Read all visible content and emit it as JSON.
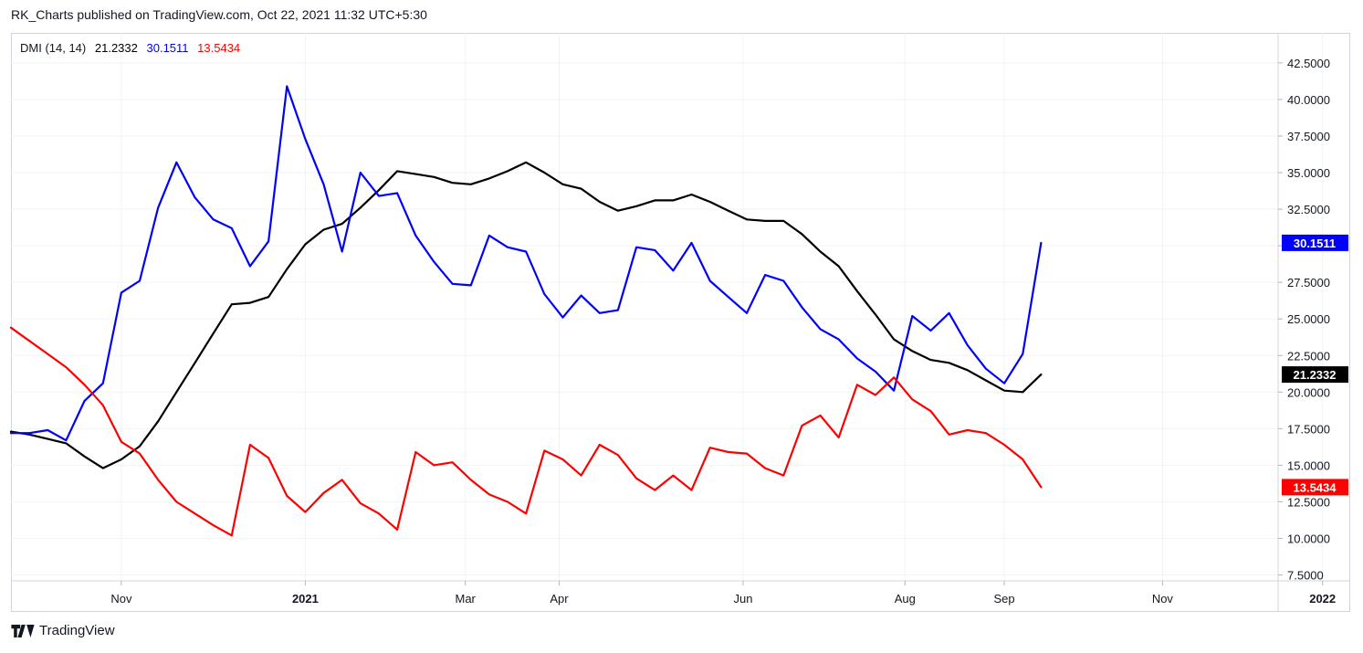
{
  "header": {
    "published_text": "RK_Charts published on TradingView.com, Oct 22, 2021 11:32 UTC+5:30"
  },
  "legend": {
    "name": "DMI (14, 14)",
    "adx": "21.2332",
    "plus_di": "30.1511",
    "minus_di": "13.5434"
  },
  "footer": {
    "brand": "TradingView"
  },
  "colors": {
    "adx": "#000000",
    "plus_di": "#0000ff",
    "minus_di": "#ff0000",
    "grid": "#f0f3fa",
    "axis_text": "#131722"
  },
  "chart_data": {
    "type": "line",
    "title": "",
    "xlabel": "",
    "ylabel": "",
    "ylim": [
      7.5,
      43.5
    ],
    "y_ticks": [
      "42.5000",
      "40.0000",
      "37.5000",
      "35.0000",
      "32.5000",
      "30.0000",
      "27.5000",
      "25.0000",
      "22.5000",
      "20.0000",
      "17.5000",
      "15.0000",
      "12.5000",
      "10.0000",
      "7.5000"
    ],
    "x_ticks": [
      {
        "label": "Nov",
        "week": 6
      },
      {
        "label": "2021",
        "week": 16
      },
      {
        "label": "Mar",
        "week": 24.7
      },
      {
        "label": "Apr",
        "week": 29.8
      },
      {
        "label": "Jun",
        "week": 39.8
      },
      {
        "label": "Aug",
        "week": 48.6
      },
      {
        "label": "Sep",
        "week": 54
      },
      {
        "label": "Nov",
        "week": 62.6
      },
      {
        "label": "2022",
        "week": 71.3
      }
    ],
    "x_range": [
      0,
      74
    ],
    "series": [
      {
        "key": "adx",
        "values": [
          17.3,
          17.1,
          16.8,
          16.5,
          15.6,
          14.8,
          15.4,
          16.3,
          18.0,
          20.0,
          22.0,
          24.0,
          26.0,
          26.1,
          26.5,
          28.4,
          30.1,
          31.1,
          31.5,
          32.6,
          33.8,
          35.1,
          34.9,
          34.7,
          34.3,
          34.2,
          34.6,
          35.1,
          35.7,
          35.0,
          34.2,
          33.9,
          33.0,
          32.4,
          32.7,
          33.1,
          33.1,
          33.5,
          33.0,
          32.4,
          31.8,
          31.7,
          31.7,
          30.8,
          29.6,
          28.6,
          26.9,
          25.3,
          23.6,
          22.8,
          22.2,
          22.0,
          21.5,
          20.8,
          20.1,
          20.0,
          21.2
        ]
      },
      {
        "key": "plus_di",
        "values": [
          17.2,
          17.2,
          17.4,
          16.7,
          19.4,
          20.6,
          26.8,
          27.6,
          32.6,
          35.7,
          33.3,
          31.8,
          31.2,
          28.6,
          30.3,
          40.9,
          37.3,
          34.2,
          29.6,
          35.0,
          33.4,
          33.6,
          30.7,
          28.9,
          27.4,
          27.3,
          30.7,
          29.9,
          29.6,
          26.7,
          25.1,
          26.6,
          25.4,
          25.6,
          29.9,
          29.7,
          28.3,
          30.2,
          27.6,
          26.5,
          25.4,
          28.0,
          27.6,
          25.8,
          24.3,
          23.6,
          22.3,
          21.4,
          20.1,
          25.2,
          24.2,
          25.4,
          23.2,
          21.6,
          20.6,
          22.6,
          30.2
        ]
      },
      {
        "key": "minus_di",
        "values": [
          24.4,
          23.5,
          22.6,
          21.7,
          20.5,
          19.1,
          16.6,
          15.8,
          14.0,
          12.5,
          11.7,
          10.9,
          10.2,
          16.4,
          15.5,
          12.9,
          11.8,
          13.1,
          14.0,
          12.4,
          11.7,
          10.6,
          15.9,
          15.0,
          15.2,
          14.0,
          13.0,
          12.5,
          11.7,
          16.0,
          15.4,
          14.3,
          16.4,
          15.7,
          14.1,
          13.3,
          14.3,
          13.3,
          16.2,
          15.9,
          15.8,
          14.8,
          14.3,
          17.7,
          18.4,
          16.9,
          20.5,
          19.8,
          21.0,
          19.5,
          18.7,
          17.1,
          17.4,
          17.2,
          16.4,
          15.4,
          13.5
        ]
      }
    ]
  }
}
